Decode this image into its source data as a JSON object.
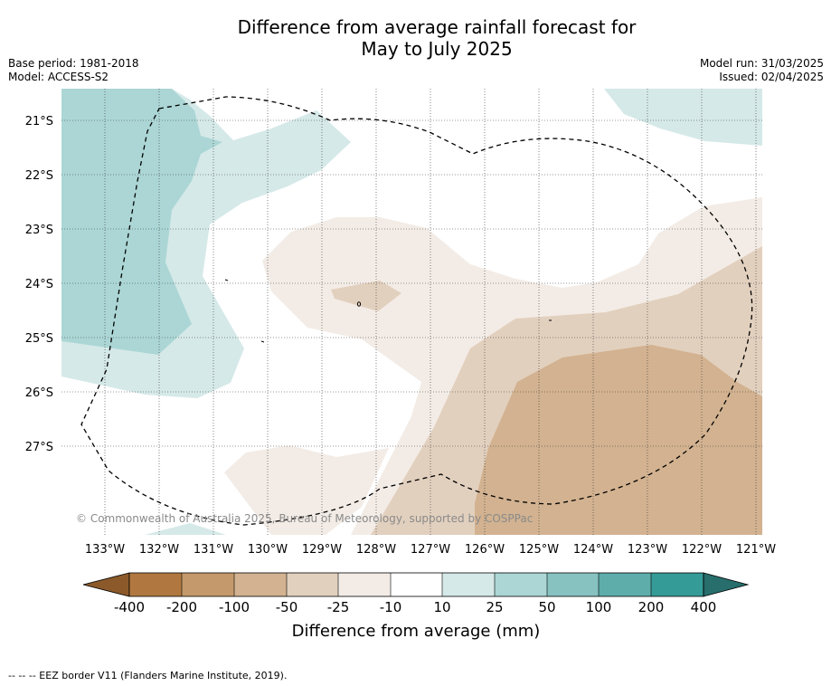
{
  "title_line1": "Difference from average rainfall forecast for",
  "title_line2": "May to July 2025",
  "base_period": "Base period: 1981-2018",
  "model": "Model: ACCESS-S2",
  "model_run": "Model run: 31/03/2025",
  "issued": "Issued: 02/04/2025",
  "copyright": "© Commonwealth of Australia 2025, Bureau of Meteorology, supported by COSPPac",
  "footer_note": "-- -- -- EEZ border V11 (Flanders Marine Institute, 2019).",
  "map": {
    "lon_ticks": [
      "133°W",
      "132°W",
      "131°W",
      "130°W",
      "129°W",
      "128°W",
      "127°W",
      "126°W",
      "125°W",
      "124°W",
      "123°W",
      "122°W",
      "121°W"
    ],
    "lat_ticks": [
      "21°S",
      "22°S",
      "23°S",
      "24°S",
      "25°S",
      "26°S",
      "27°S"
    ],
    "lon_range": [
      -133.8,
      -120.9
    ],
    "lat_range": [
      -20.5,
      -28.7
    ],
    "gridlines": true
  },
  "colorbar": {
    "label": "Difference from average (mm)",
    "tick_labels": [
      "-400",
      "-200",
      "-100",
      "-50",
      "-25",
      "-10",
      "10",
      "25",
      "50",
      "100",
      "200",
      "400"
    ],
    "colors": [
      "#8c5a2a",
      "#b07840",
      "#c49a6c",
      "#d2b290",
      "#e2d0be",
      "#f3ece6",
      "#ffffff",
      "#d5e9e8",
      "#abd6d5",
      "#87c2c1",
      "#5eadab",
      "#359b97",
      "#276e6c"
    ]
  }
}
